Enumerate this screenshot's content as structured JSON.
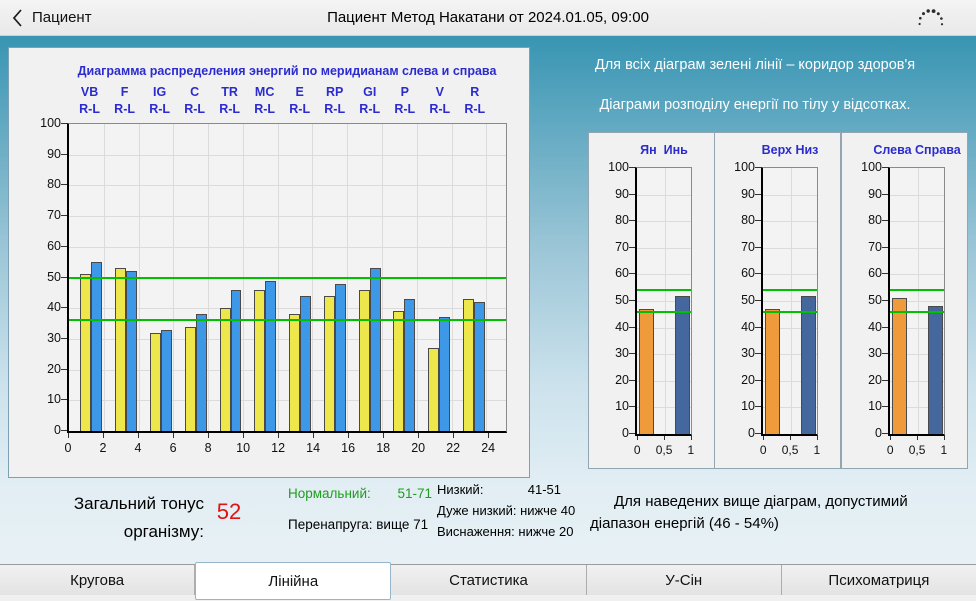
{
  "header": {
    "back_label": "Пациент",
    "title": "Пациент  Метод Накатани от 2024.01.05, 09:00",
    "icons": {
      "back": "chevron-left-icon",
      "busy": "busy-indicator-icon"
    }
  },
  "colors": {
    "title_blue": "#2B2BD0",
    "bar_yellow": "#EDE74B",
    "bar_blue": "#3D99E8",
    "bar_orange": "#F09B3B",
    "bar_steel": "#44689E",
    "bar_outline": "#4A4A4A",
    "corridor_green": "#00C000",
    "value_red": "#E01212",
    "normal_green": "#1E9E1E"
  },
  "chart_data": [
    {
      "id": "meridian-energies",
      "type": "bar",
      "title": "Диаграмма распределения энергий по меридианам слева и справа",
      "categories": [
        "VB",
        "F",
        "IG",
        "C",
        "TR",
        "MC",
        "E",
        "RP",
        "GI",
        "P",
        "V",
        "R"
      ],
      "category_sub_label": "R-L",
      "series": [
        {
          "name": "R",
          "color_key": "bar_yellow",
          "values": [
            51,
            53,
            32,
            34,
            40,
            46,
            38,
            44,
            46,
            39,
            27,
            43
          ]
        },
        {
          "name": "L",
          "color_key": "bar_blue",
          "values": [
            55,
            52,
            33,
            38,
            46,
            49,
            44,
            48,
            53,
            43,
            37,
            42
          ]
        }
      ],
      "ylim": [
        0,
        100
      ],
      "ytick_labels": [
        "0",
        "10",
        "20",
        "30",
        "40",
        "50",
        "60",
        "70",
        "80",
        "90",
        "100"
      ],
      "xlim": [
        0,
        24
      ],
      "xtick_labels": [
        "0",
        "2",
        "4",
        "6",
        "8",
        "10",
        "12",
        "14",
        "16",
        "18",
        "20",
        "22",
        "24"
      ],
      "corridor": [
        36,
        50
      ],
      "grid": true,
      "legend_position": "none"
    },
    {
      "id": "yan-yin",
      "type": "bar",
      "title": "Ян  Инь",
      "values": [
        47,
        52
      ],
      "color_keys": [
        "bar_orange",
        "bar_steel"
      ],
      "ylim": [
        0,
        100
      ],
      "ytick_labels": [
        "0",
        "10",
        "20",
        "30",
        "40",
        "50",
        "60",
        "70",
        "80",
        "90",
        "100"
      ],
      "xtick_labels": [
        "0",
        "0,5",
        "1"
      ],
      "corridor": [
        46,
        54
      ],
      "grid": true
    },
    {
      "id": "verh-niz",
      "type": "bar",
      "title": "Верх Низ",
      "values": [
        47,
        52
      ],
      "color_keys": [
        "bar_orange",
        "bar_steel"
      ],
      "ylim": [
        0,
        100
      ],
      "ytick_labels": [
        "0",
        "10",
        "20",
        "30",
        "40",
        "50",
        "60",
        "70",
        "80",
        "90",
        "100"
      ],
      "xtick_labels": [
        "0",
        "0,5",
        "1"
      ],
      "corridor": [
        46,
        54
      ],
      "grid": true
    },
    {
      "id": "sleva-sprava",
      "type": "bar",
      "title": "Слева Справа",
      "values": [
        51,
        48
      ],
      "color_keys": [
        "bar_orange",
        "bar_steel"
      ],
      "ylim": [
        0,
        100
      ],
      "ytick_labels": [
        "0",
        "10",
        "20",
        "30",
        "40",
        "50",
        "60",
        "70",
        "80",
        "90",
        "100"
      ],
      "xtick_labels": [
        "0",
        "0,5",
        "1"
      ],
      "corridor": [
        46,
        54
      ],
      "grid": true
    }
  ],
  "right_panel": {
    "note_corridor": "Для всіх діаграм зелені лінії – коридор здоров'я",
    "note_distribution": "Діаграми розподілу енергії по тілу у відсотках."
  },
  "footer": {
    "tonus_label_line1": "Загальний тонус",
    "tonus_label_line2": "організму:",
    "tonus_value": "52",
    "ranges": {
      "normal_label": "Нормальний:",
      "normal_value": "51-71",
      "overstrain": "Перенапруга: вище 71",
      "low_label": "Низкий:",
      "low_value": "41-51",
      "very_low": "Дуже низкий: нижче 40",
      "exhaustion": "Виснаження: нижче 20"
    },
    "note": "Для наведених вище діаграм, допустимий діапазон енергій (46 - 54%)"
  },
  "tabs": [
    {
      "label": "Кругова",
      "active": false
    },
    {
      "label": "Лінійна",
      "active": true
    },
    {
      "label": "Статистика",
      "active": false
    },
    {
      "label": "У-Сін",
      "active": false
    },
    {
      "label": "Психоматриця",
      "active": false
    }
  ]
}
